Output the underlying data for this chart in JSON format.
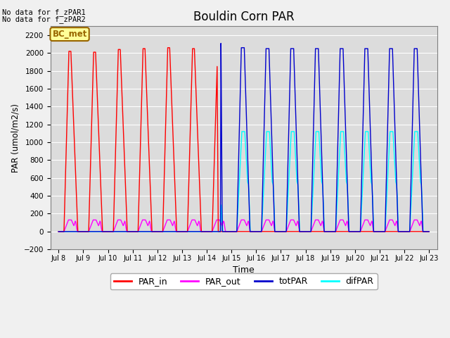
{
  "title": "Bouldin Corn PAR",
  "ylabel": "PAR (umol/m2/s)",
  "xlabel": "Time",
  "xlim_days": [
    7.67,
    23.33
  ],
  "ylim": [
    -200,
    2300
  ],
  "yticks": [
    -200,
    0,
    200,
    400,
    600,
    800,
    1000,
    1200,
    1400,
    1600,
    1800,
    2000,
    2200
  ],
  "xtick_labels": [
    "Jul 8",
    "Jul 9",
    "Jul 10",
    "Jul 11",
    "Jul 12",
    "Jul 13",
    "Jul 14",
    "Jul 15",
    "Jul 16",
    "Jul 17",
    "Jul 18",
    "Jul 19",
    "Jul 20",
    "Jul 21",
    "Jul 22",
    "Jul 23"
  ],
  "xtick_positions": [
    8,
    9,
    10,
    11,
    12,
    13,
    14,
    15,
    16,
    17,
    18,
    19,
    20,
    21,
    22,
    23
  ],
  "no_data_text1": "No data for f_zPAR1",
  "no_data_text2": "No data for f_zPAR2",
  "legend_box_text": "BC_met",
  "legend_box_color": "#ffff99",
  "legend_box_border": "#996600",
  "par_in_color": "#ff0000",
  "par_out_color": "#ff00ff",
  "tot_par_color": "#0000cc",
  "dif_par_color": "#00ffff",
  "bg_color": "#dcdcdc",
  "grid_color": "#ffffff",
  "fig_bg_color": "#f0f0f0"
}
